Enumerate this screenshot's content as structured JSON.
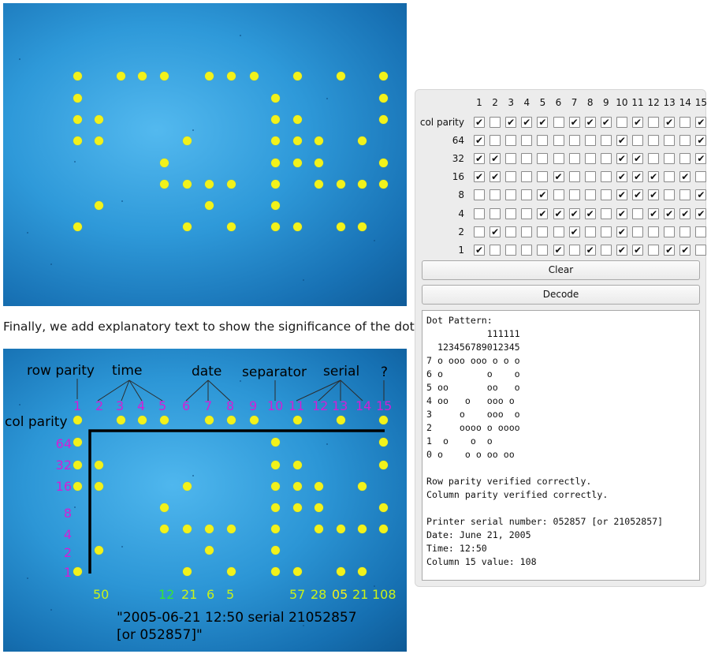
{
  "caption": "Finally, we add explanatory text to show the significance of the dots.",
  "overlay": {
    "row_parity": "row parity",
    "time": "time",
    "date": "date",
    "separator": "separator",
    "serial": "serial",
    "question": "?",
    "col_parity": "col parity",
    "column_numbers": [
      "1",
      "2",
      "3",
      "4",
      "5",
      "6",
      "7",
      "8",
      "9",
      "10",
      "11",
      "12",
      "13",
      "14",
      "15"
    ],
    "row_values": [
      "64",
      "32",
      "16",
      "8",
      "4",
      "2",
      "1"
    ],
    "decoded_values": {
      "c1": "50",
      "c5a": "12",
      "c6": "21",
      "c7": "6",
      "c8": "5",
      "c11": "57",
      "c12": "28",
      "c13": "05",
      "c14": "21",
      "c15": "108"
    },
    "summary_line1": "\"2005-06-21 12:50 serial 21052857",
    "summary_line2": "[or 052857]\""
  },
  "decoder": {
    "column_headers": [
      "1",
      "2",
      "3",
      "4",
      "5",
      "6",
      "7",
      "8",
      "9",
      "10",
      "11",
      "12",
      "13",
      "14",
      "15"
    ],
    "rows": [
      {
        "label": "col parity",
        "checked": [
          1,
          0,
          1,
          1,
          1,
          0,
          1,
          1,
          1,
          0,
          1,
          0,
          1,
          0,
          1
        ]
      },
      {
        "label": "64",
        "checked": [
          1,
          0,
          0,
          0,
          0,
          0,
          0,
          0,
          0,
          1,
          0,
          0,
          0,
          0,
          1
        ]
      },
      {
        "label": "32",
        "checked": [
          1,
          1,
          0,
          0,
          0,
          0,
          0,
          0,
          0,
          1,
          1,
          0,
          0,
          0,
          1
        ]
      },
      {
        "label": "16",
        "checked": [
          1,
          1,
          0,
          0,
          0,
          1,
          0,
          0,
          0,
          1,
          1,
          1,
          0,
          1,
          0
        ]
      },
      {
        "label": "8",
        "checked": [
          0,
          0,
          0,
          0,
          1,
          0,
          0,
          0,
          0,
          1,
          1,
          1,
          0,
          0,
          1
        ]
      },
      {
        "label": "4",
        "checked": [
          0,
          0,
          0,
          0,
          1,
          1,
          1,
          1,
          0,
          1,
          0,
          1,
          1,
          1,
          1
        ]
      },
      {
        "label": "2",
        "checked": [
          0,
          1,
          0,
          0,
          0,
          0,
          1,
          0,
          0,
          1,
          0,
          0,
          0,
          0,
          0
        ]
      },
      {
        "label": "1",
        "checked": [
          1,
          0,
          0,
          0,
          0,
          1,
          0,
          1,
          0,
          1,
          1,
          0,
          1,
          1,
          0
        ]
      }
    ],
    "check_glyph": "✔",
    "clear_label": "Clear",
    "decode_label": "Decode",
    "output": "Dot Pattern:\n           111111\n  123456789012345\n7 o ooo ooo o o o\n6 o        o    o\n5 oo       oo   o\n4 oo   o   ooo o\n3     o    ooo  o\n2     oooo o oooo\n1  o    o  o\n0 o    o o oo oo\n\nRow parity verified correctly.\nColumn parity verified correctly.\n\nPrinter serial number: 052857 [or 21052857]\nDate: June 21, 2005\nTime: 12:50\nColumn 15 value: 108"
  },
  "colors": {
    "dot": "#f2f21b",
    "number_label": "#d21fd6",
    "decoded_green": "#35e635",
    "decoded_lime": "#c9f21a"
  }
}
